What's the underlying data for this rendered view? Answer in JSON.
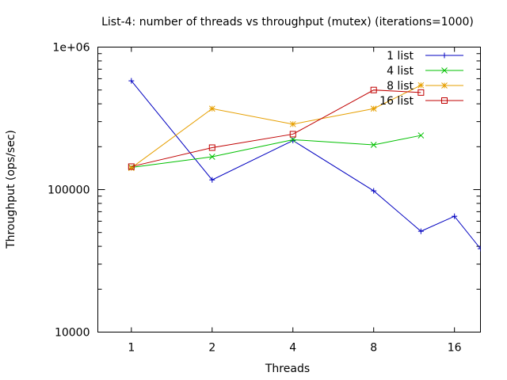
{
  "chart_data": {
    "type": "line",
    "title": "List-4: number of threads vs throughput (mutex) (iterations=1000)",
    "xlabel": "Threads",
    "ylabel": "Throughput (ops/sec)",
    "x_scale": "log2",
    "y_scale": "log10",
    "xlim": [
      0.75,
      20
    ],
    "ylim": [
      10000,
      1000000
    ],
    "x_ticks": [
      1,
      2,
      4,
      8,
      16
    ],
    "x_tick_labels": [
      "1",
      "2",
      "4",
      "8",
      "16"
    ],
    "y_ticks": [
      10000,
      100000,
      1000000
    ],
    "y_tick_labels": [
      "10000",
      "100000",
      "1e+06"
    ],
    "grid": false,
    "legend_position": "top-right",
    "series": [
      {
        "name": "1 list",
        "color": "#0000c0",
        "marker": "plus",
        "points": [
          [
            1,
            580000
          ],
          [
            2,
            117000
          ],
          [
            4,
            221000
          ],
          [
            8,
            98000
          ],
          [
            12,
            51000
          ],
          [
            16,
            65000
          ],
          [
            20,
            38500
          ]
        ]
      },
      {
        "name": "4 list",
        "color": "#00c000",
        "marker": "cross",
        "points": [
          [
            1,
            143000
          ],
          [
            2,
            170000
          ],
          [
            4,
            224000
          ],
          [
            8,
            206000
          ],
          [
            12,
            240000
          ]
        ]
      },
      {
        "name": "8 list",
        "color": "#e69f00",
        "marker": "star",
        "points": [
          [
            1,
            142000
          ],
          [
            2,
            370000
          ],
          [
            4,
            288000
          ],
          [
            8,
            370000
          ],
          [
            12,
            540000
          ]
        ]
      },
      {
        "name": "16 list",
        "color": "#c00000",
        "marker": "square",
        "points": [
          [
            1,
            145000
          ],
          [
            2,
            197000
          ],
          [
            4,
            245000
          ],
          [
            8,
            500000
          ],
          [
            12,
            480000
          ]
        ]
      }
    ]
  }
}
